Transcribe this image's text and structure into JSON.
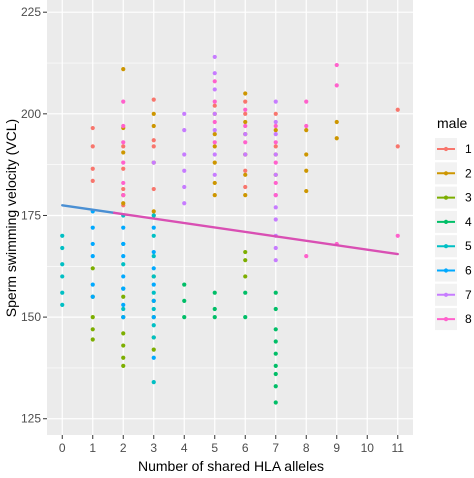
{
  "chart_data": {
    "type": "scatter",
    "xlabel": "Number of shared HLA alleles",
    "ylabel": "Sperm swimming velocity (VCL)",
    "xlim": [
      -0.5,
      11.5
    ],
    "ylim": [
      121,
      228
    ],
    "x_ticks": [
      0,
      1,
      2,
      3,
      4,
      5,
      6,
      7,
      8,
      9,
      10,
      11
    ],
    "y_ticks": [
      125,
      150,
      175,
      200,
      225
    ],
    "x_tick_labels": [
      "0",
      "1",
      "2",
      "3",
      "4",
      "5",
      "6",
      "7",
      "8",
      "9",
      "10",
      "11"
    ],
    "y_tick_labels": [
      "125",
      "150",
      "175",
      "200",
      "225"
    ],
    "grid": true,
    "background": "#ebebeb",
    "legend": {
      "title": "male",
      "placement": "right",
      "entries": [
        "1",
        "2",
        "3",
        "4",
        "5",
        "6",
        "7",
        "8"
      ],
      "colors": [
        "#f8766d",
        "#cd9600",
        "#7cae00",
        "#00be67",
        "#00bfc4",
        "#00a9ff",
        "#c77cff",
        "#ff61cc"
      ]
    },
    "series": [
      {
        "colorIndex": 0,
        "points": [
          [
            1,
            196.5
          ],
          [
            1,
            192
          ],
          [
            1,
            186.5
          ],
          [
            1,
            183.5
          ],
          [
            2,
            192
          ],
          [
            2,
            186.5
          ],
          [
            2,
            181.5
          ],
          [
            2,
            177.5
          ],
          [
            3,
            203.5
          ],
          [
            3,
            193.5
          ],
          [
            3,
            192
          ],
          [
            3,
            181.5
          ],
          [
            3,
            175
          ],
          [
            5,
            202
          ],
          [
            6,
            203
          ],
          [
            6,
            200
          ],
          [
            6,
            190
          ],
          [
            6,
            186
          ],
          [
            6,
            182
          ],
          [
            7,
            200
          ],
          [
            7,
            192
          ],
          [
            11,
            201
          ],
          [
            11,
            192
          ]
        ]
      },
      {
        "colorIndex": 1,
        "points": [
          [
            2,
            211
          ],
          [
            2,
            196.5
          ],
          [
            2,
            190.5
          ],
          [
            2,
            180
          ],
          [
            2,
            178
          ],
          [
            3,
            200
          ],
          [
            3,
            197
          ],
          [
            3,
            188
          ],
          [
            3,
            176
          ],
          [
            5,
            200
          ],
          [
            5,
            195
          ],
          [
            5,
            192
          ],
          [
            5,
            188
          ],
          [
            5,
            183
          ],
          [
            5,
            180
          ],
          [
            6,
            205
          ],
          [
            6,
            198
          ],
          [
            6,
            195
          ],
          [
            6,
            190
          ],
          [
            6,
            185
          ],
          [
            6,
            180
          ],
          [
            7,
            196
          ],
          [
            7,
            190
          ],
          [
            7,
            185
          ],
          [
            8,
            196
          ],
          [
            8,
            190
          ],
          [
            8,
            186
          ],
          [
            8,
            181
          ],
          [
            9,
            198
          ],
          [
            9,
            194
          ]
        ]
      },
      {
        "colorIndex": 2,
        "points": [
          [
            1,
            162
          ],
          [
            1,
            155
          ],
          [
            1,
            150
          ],
          [
            1,
            147
          ],
          [
            1,
            144.5
          ],
          [
            2,
            155
          ],
          [
            2,
            150
          ],
          [
            2,
            146
          ],
          [
            2,
            143
          ],
          [
            2,
            140
          ],
          [
            2,
            138
          ],
          [
            3,
            160
          ],
          [
            3,
            154
          ],
          [
            3,
            150
          ],
          [
            3,
            145
          ],
          [
            3,
            142
          ],
          [
            6,
            166
          ],
          [
            6,
            164
          ],
          [
            6,
            160
          ]
        ]
      },
      {
        "colorIndex": 3,
        "points": [
          [
            4,
            158
          ],
          [
            4,
            154
          ],
          [
            4,
            150
          ],
          [
            5,
            156
          ],
          [
            5,
            152
          ],
          [
            5,
            150
          ],
          [
            6,
            156
          ],
          [
            6,
            150
          ],
          [
            7,
            156
          ],
          [
            7,
            152
          ],
          [
            7,
            147
          ],
          [
            7,
            144
          ],
          [
            7,
            141
          ],
          [
            7,
            138
          ],
          [
            7,
            136
          ],
          [
            7,
            133
          ],
          [
            7,
            129
          ]
        ]
      },
      {
        "colorIndex": 4,
        "points": [
          [
            0,
            170
          ],
          [
            0,
            167
          ],
          [
            0,
            163
          ],
          [
            0,
            160
          ],
          [
            0,
            156
          ],
          [
            0,
            153
          ],
          [
            2,
            175
          ],
          [
            2,
            168
          ],
          [
            2,
            163
          ],
          [
            2,
            157
          ],
          [
            2,
            152
          ],
          [
            3,
            175
          ],
          [
            3,
            170
          ],
          [
            3,
            165
          ],
          [
            3,
            160
          ],
          [
            3,
            156
          ],
          [
            3,
            152
          ],
          [
            3,
            148
          ],
          [
            3,
            145
          ],
          [
            3,
            134
          ]
        ]
      },
      {
        "colorIndex": 5,
        "points": [
          [
            1,
            176
          ],
          [
            1,
            172
          ],
          [
            1,
            168
          ],
          [
            1,
            165
          ],
          [
            1,
            158
          ],
          [
            1,
            155
          ],
          [
            2,
            172
          ],
          [
            2,
            168
          ],
          [
            2,
            165
          ],
          [
            2,
            160
          ],
          [
            2,
            157
          ],
          [
            2,
            153
          ],
          [
            2,
            150
          ],
          [
            3,
            172
          ],
          [
            3,
            166
          ],
          [
            3,
            162
          ],
          [
            3,
            158
          ],
          [
            3,
            154
          ],
          [
            3,
            150
          ],
          [
            3,
            140
          ]
        ]
      },
      {
        "colorIndex": 6,
        "points": [
          [
            3,
            188
          ],
          [
            4,
            200
          ],
          [
            4,
            196
          ],
          [
            4,
            190
          ],
          [
            4,
            186
          ],
          [
            4,
            182
          ],
          [
            4,
            178
          ],
          [
            5,
            214
          ],
          [
            5,
            210
          ],
          [
            5,
            206
          ],
          [
            5,
            200
          ],
          [
            5,
            196
          ],
          [
            5,
            190
          ],
          [
            5,
            185
          ],
          [
            6,
            195
          ],
          [
            6,
            190
          ],
          [
            7,
            203
          ],
          [
            7,
            198
          ],
          [
            7,
            195
          ],
          [
            7,
            190
          ],
          [
            7,
            185
          ],
          [
            7,
            180
          ],
          [
            7,
            177
          ],
          [
            7,
            174
          ],
          [
            7,
            170
          ],
          [
            7,
            167
          ],
          [
            7,
            164
          ]
        ]
      },
      {
        "colorIndex": 7,
        "points": [
          [
            2,
            203
          ],
          [
            2,
            197
          ],
          [
            2,
            193
          ],
          [
            2,
            188
          ],
          [
            2,
            183
          ],
          [
            2,
            180
          ],
          [
            5,
            208
          ],
          [
            5,
            203
          ],
          [
            5,
            198
          ],
          [
            5,
            193
          ],
          [
            6,
            201
          ],
          [
            6,
            197
          ],
          [
            6,
            193
          ],
          [
            7,
            197
          ],
          [
            7,
            193
          ],
          [
            7,
            188
          ],
          [
            7,
            183
          ],
          [
            7,
            180
          ],
          [
            8,
            203
          ],
          [
            8,
            197
          ],
          [
            8,
            165
          ],
          [
            9,
            212
          ],
          [
            9,
            207
          ],
          [
            9,
            168
          ],
          [
            11,
            170
          ]
        ]
      }
    ],
    "regression": {
      "x": [
        0,
        11
      ],
      "y": [
        177.5,
        165.5
      ],
      "split_at": 1.7
    }
  }
}
